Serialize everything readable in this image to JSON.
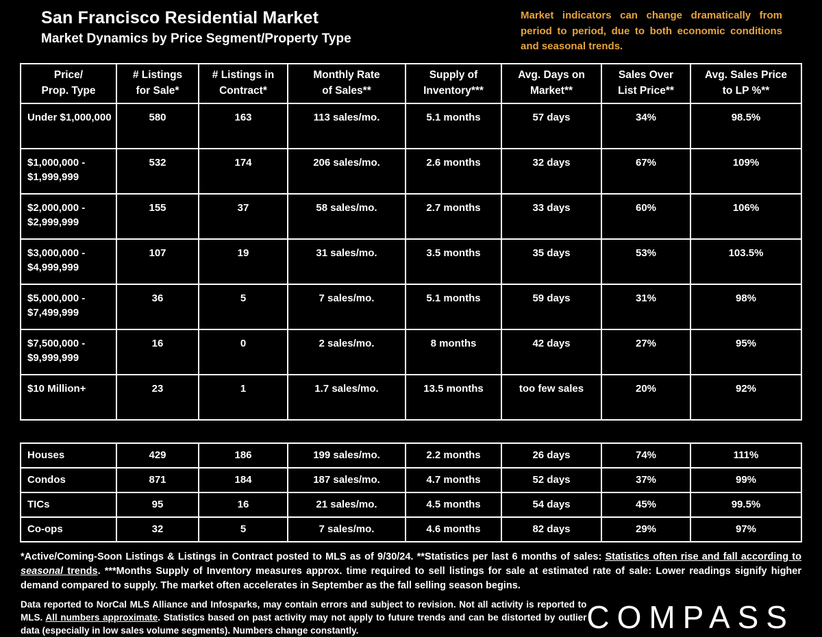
{
  "title": "San Francisco Residential Market",
  "subtitle": "Market Dynamics by Price Segment/Property Type",
  "note": {
    "text": "Market indicators can change dramatically from period to period, due to both economic conditions and seasonal trends."
  },
  "colors": {
    "background": "#000000",
    "text": "#FFFFFF",
    "accent_gold": "#E8A33D",
    "table_border": "#FFFFFF"
  },
  "table": {
    "headers": [
      "Price/\nProp. Type",
      "# Listings\nfor Sale*",
      "# Listings in\nContract*",
      "Monthly Rate\nof Sales**",
      "Supply of\nInventory***",
      "Avg. Days on\nMarket**",
      "Sales Over\nList Price**",
      "Avg. Sales Price\nto LP %**"
    ]
  },
  "chart_data": {
    "type": "table",
    "title": "San Francisco Residential Market — Market Dynamics by Price Segment/Property Type",
    "columns": [
      "Price/Prop. Type",
      "# Listings for Sale*",
      "# Listings in Contract*",
      "Monthly Rate of Sales**",
      "Supply of Inventory***",
      "Avg. Days on Market**",
      "Sales Over List Price**",
      "Avg. Sales Price to LP %**"
    ],
    "price_segment_rows": [
      [
        "Under $1,000,000",
        "580",
        "163",
        "113 sales/mo.",
        "5.1 months",
        "57 days",
        "34%",
        "98.5%"
      ],
      [
        "$1,000,000 - $1,999,999",
        "532",
        "174",
        "206 sales/mo.",
        "2.6 months",
        "32 days",
        "67%",
        "109%"
      ],
      [
        "$2,000,000 - $2,999,999",
        "155",
        "37",
        "58 sales/mo.",
        "2.7 months",
        "33 days",
        "60%",
        "106%"
      ],
      [
        "$3,000,000 - $4,999,999",
        "107",
        "19",
        "31 sales/mo.",
        "3.5 months",
        "35 days",
        "53%",
        "103.5%"
      ],
      [
        "$5,000,000 - $7,499,999",
        "36",
        "5",
        "7 sales/mo.",
        "5.1 months",
        "59 days",
        "31%",
        "98%"
      ],
      [
        "$7,500,000 - $9,999,999",
        "16",
        "0",
        "2 sales/mo.",
        "8 months",
        "42 days",
        "27%",
        "95%"
      ],
      [
        "$10 Million+",
        "23",
        "1",
        "1.7 sales/mo.",
        "13.5 months",
        "too few sales",
        "20%",
        "92%"
      ]
    ],
    "property_type_rows": [
      [
        "Houses",
        "429",
        "186",
        "199 sales/mo.",
        "2.2 months",
        "26 days",
        "74%",
        "111%"
      ],
      [
        "Condos",
        "871",
        "184",
        "187 sales/mo.",
        "4.7 months",
        "52 days",
        "37%",
        "99%"
      ],
      [
        "TICs",
        "95",
        "16",
        "21 sales/mo.",
        "4.5 months",
        "54 days",
        "45%",
        "99.5%"
      ],
      [
        "Co-ops",
        "32",
        "5",
        "7 sales/mo.",
        "4.6 months",
        "82 days",
        "29%",
        "97%"
      ]
    ]
  },
  "footnote": {
    "seg1": "*Active/Coming-Soon Listings & Listings in Contract posted to MLS as of 9/30/24. **Statistics per last 6 months of sales: ",
    "seg2_underline": "Statistics often rise and fall according to ",
    "seg3_underline_italic": "seasonal",
    "seg4_underline": " trends",
    "seg5": ".  ***Months Supply of Inventory measures approx. time required to sell listings for sale at estimated rate of sale:  Lower readings signify higher demand compared to supply. The market often accelerates in September as the fall selling season begins."
  },
  "disclaimer": {
    "seg1": "Data reported to NorCal MLS Alliance and Infosparks, may contain errors and subject to revision.  Not all activity is reported to MLS. ",
    "seg2_underline": "All numbers approximate",
    "seg3": ". Statistics based on past activity may not apply to future trends and can be distorted by outlier data (especially in low sales volume segments). Numbers change constantly."
  },
  "brand": {
    "logo_text": "COMPASS"
  }
}
